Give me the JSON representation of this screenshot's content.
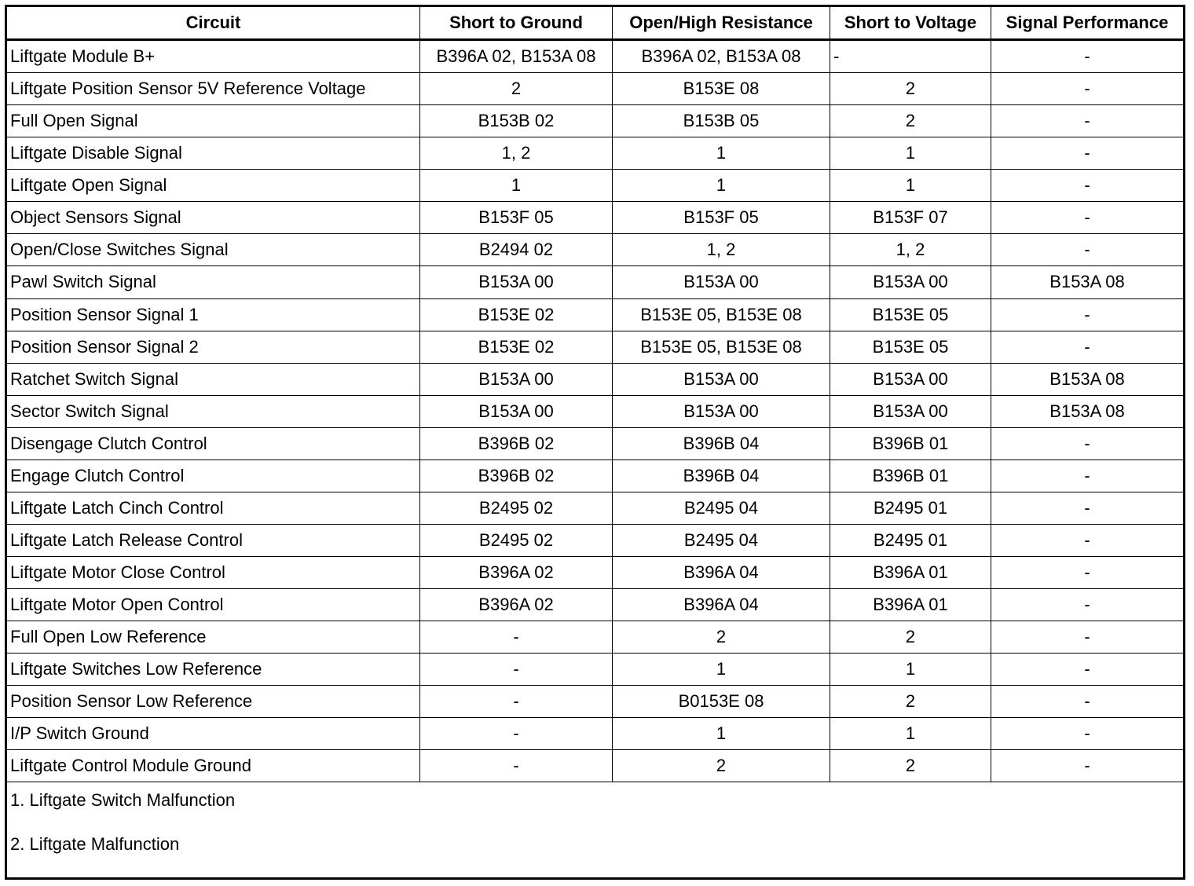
{
  "table": {
    "header": [
      "Circuit",
      "Short to Ground",
      "Open/High Resistance",
      "Short to Voltage",
      "Signal Performance"
    ],
    "rows": [
      [
        "Liftgate Module B+",
        "B396A 02, B153A 08",
        "B396A 02, B153A 08",
        "-",
        "-"
      ],
      [
        "Liftgate Position Sensor 5V Reference Voltage",
        "2",
        "B153E 08",
        "2",
        "-"
      ],
      [
        "Full Open Signal",
        "B153B 02",
        "B153B 05",
        "2",
        "-"
      ],
      [
        "Liftgate Disable Signal",
        "1, 2",
        "1",
        "1",
        "-"
      ],
      [
        "Liftgate Open Signal",
        "1",
        "1",
        "1",
        "-"
      ],
      [
        "Object Sensors Signal",
        "B153F 05",
        "B153F 05",
        "B153F 07",
        "-"
      ],
      [
        "Open/Close Switches Signal",
        "B2494 02",
        "1, 2",
        "1, 2",
        "-"
      ],
      [
        "Pawl Switch Signal",
        "B153A 00",
        "B153A 00",
        "B153A 00",
        "B153A 08"
      ],
      [
        "Position Sensor Signal 1",
        "B153E 02",
        "B153E 05, B153E 08",
        "B153E 05",
        "-"
      ],
      [
        "Position Sensor Signal 2",
        "B153E 02",
        "B153E 05, B153E 08",
        "B153E 05",
        "-"
      ],
      [
        "Ratchet Switch Signal",
        "B153A 00",
        "B153A 00",
        "B153A 00",
        "B153A 08"
      ],
      [
        "Sector Switch Signal",
        "B153A 00",
        "B153A 00",
        "B153A 00",
        "B153A 08"
      ],
      [
        "Disengage Clutch Control",
        "B396B 02",
        "B396B 04",
        "B396B 01",
        "-"
      ],
      [
        "Engage Clutch Control",
        "B396B 02",
        "B396B 04",
        "B396B 01",
        "-"
      ],
      [
        "Liftgate Latch Cinch Control",
        "B2495 02",
        "B2495 04",
        "B2495 01",
        "-"
      ],
      [
        "Liftgate Latch Release Control",
        "B2495 02",
        "B2495 04",
        "B2495 01",
        "-"
      ],
      [
        "Liftgate Motor Close Control",
        "B396A 02",
        "B396A 04",
        "B396A 01",
        "-"
      ],
      [
        "Liftgate Motor Open Control",
        "B396A 02",
        "B396A 04",
        "B396A 01",
        "-"
      ],
      [
        "Full Open Low Reference",
        "-",
        "2",
        "2",
        "-"
      ],
      [
        "Liftgate Switches Low Reference",
        "-",
        "1",
        "1",
        "-"
      ],
      [
        "Position Sensor Low Reference",
        "-",
        "B0153E 08",
        "2",
        "-"
      ],
      [
        "I/P Switch Ground",
        "-",
        "1",
        "1",
        "-"
      ],
      [
        "Liftgate Control Module Ground",
        "-",
        "2",
        "2",
        "-"
      ]
    ],
    "notes": [
      "1. Liftgate Switch Malfunction",
      "2. Liftgate Malfunction"
    ]
  }
}
